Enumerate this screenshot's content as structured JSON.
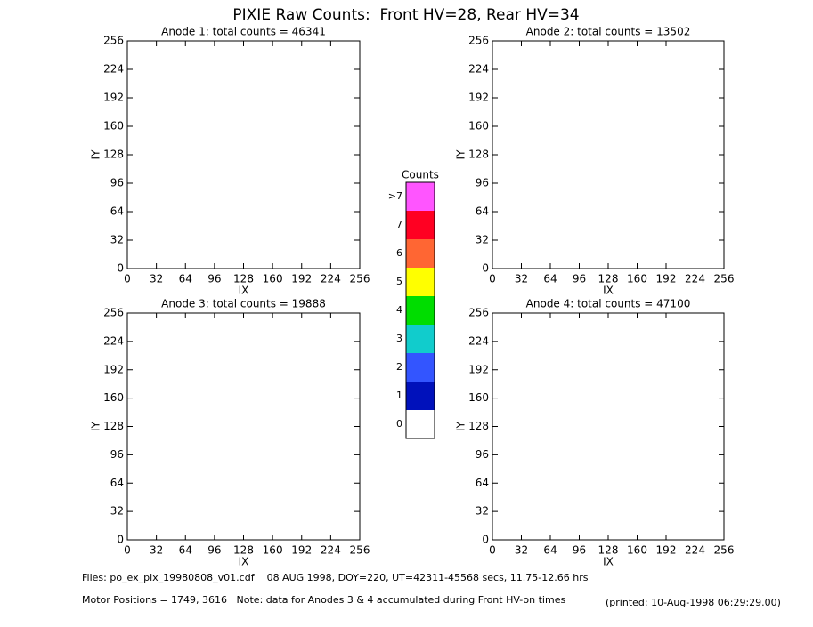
{
  "title": "PIXIE Raw Counts:  Front HV=28, Rear HV=34",
  "chart_data": [
    {
      "type": "image",
      "title": "Anode 1: total counts = 46341",
      "xlabel": "IX",
      "ylabel": "IY",
      "xlim": [
        0,
        256
      ],
      "ylim": [
        0,
        256
      ],
      "xticks": [
        0,
        32,
        64,
        96,
        128,
        160,
        192,
        224,
        256
      ],
      "yticks": [
        0,
        32,
        64,
        96,
        128,
        160,
        192,
        224,
        256
      ]
    },
    {
      "type": "image",
      "title": "Anode 2: total counts = 13502",
      "xlabel": "IX",
      "ylabel": "IY",
      "xlim": [
        0,
        256
      ],
      "ylim": [
        0,
        256
      ],
      "xticks": [
        0,
        32,
        64,
        96,
        128,
        160,
        192,
        224,
        256
      ],
      "yticks": [
        0,
        32,
        64,
        96,
        128,
        160,
        192,
        224,
        256
      ]
    },
    {
      "type": "image",
      "title": "Anode 3: total counts = 19888",
      "xlabel": "IX",
      "ylabel": "IY",
      "xlim": [
        0,
        256
      ],
      "ylim": [
        0,
        256
      ],
      "xticks": [
        0,
        32,
        64,
        96,
        128,
        160,
        192,
        224,
        256
      ],
      "yticks": [
        0,
        32,
        64,
        96,
        128,
        160,
        192,
        224,
        256
      ]
    },
    {
      "type": "image",
      "title": "Anode 4: total counts = 47100",
      "xlabel": "IX",
      "ylabel": "IY",
      "xlim": [
        0,
        256
      ],
      "ylim": [
        0,
        256
      ],
      "xticks": [
        0,
        32,
        64,
        96,
        128,
        160,
        192,
        224,
        256
      ],
      "yticks": [
        0,
        32,
        64,
        96,
        128,
        160,
        192,
        224,
        256
      ]
    }
  ],
  "colorbar": {
    "title": "Counts",
    "levels": [
      {
        "value": 8,
        "label": ">7"
      },
      7,
      6,
      5,
      4,
      3,
      2,
      1,
      0
    ],
    "colors": [
      "#ff55ff",
      "#ff0022",
      "#ff6633",
      "#ffff00",
      "#00dd00",
      "#11cccc",
      "#3355ff",
      "#0011bb",
      "#ffffff"
    ]
  },
  "footer": {
    "files": "Files: po_ex_pix_19980808_v01.cdf    08 AUG 1998, DOY=220, UT=42311-45568 secs, 11.75-12.66 hrs",
    "motor": "Motor Positions = 1749, 3616   Note: data for Anodes 3 & 4 accumulated during Front HV-on times",
    "printed": "(printed: 10-Aug-1998 06:29:29.00)"
  }
}
